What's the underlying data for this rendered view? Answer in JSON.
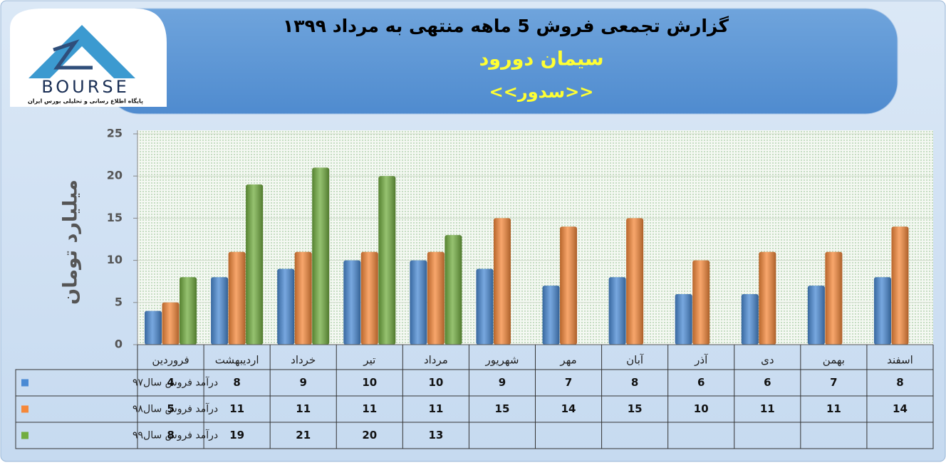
{
  "logo": {
    "name": "BOURSE",
    "tagline": "پایگاه اطلاع رسانی و تحلیلی بورس ایران"
  },
  "chart_data": {
    "type": "bar",
    "title": "گزارش تجمعی فروش  5 ماهه منتهی به مرداد ۱۳۹۹",
    "subtitle": "سیمان دورود",
    "symbol": "<<سدور>>",
    "y_label": "میلیارد تومان",
    "categories": [
      "فروردین",
      "اردیبهشت",
      "خرداد",
      "تیر",
      "مرداد",
      "شهریور",
      "مهر",
      "آبان",
      "آذر",
      "دی",
      "بهمن",
      "اسفند"
    ],
    "series": [
      {
        "name": "درآمد فروش سال۹۷",
        "color": "#4a8ad4",
        "values": [
          4,
          8,
          9,
          10,
          10,
          9,
          7,
          8,
          6,
          6,
          7,
          8
        ]
      },
      {
        "name": "درآمد فروش سال۹۸",
        "color": "#f5883a",
        "values": [
          5,
          11,
          11,
          11,
          11,
          15,
          14,
          15,
          10,
          11,
          11,
          14
        ]
      },
      {
        "name": "درآمد فروش سال۹۹",
        "color": "#72ad40",
        "values": [
          8,
          19,
          21,
          20,
          13,
          null,
          null,
          null,
          null,
          null,
          null,
          null
        ]
      }
    ],
    "ylim": [
      0,
      25
    ],
    "yticks": [
      0,
      5,
      10,
      15,
      20,
      25
    ],
    "grid": true,
    "data_table": true
  }
}
